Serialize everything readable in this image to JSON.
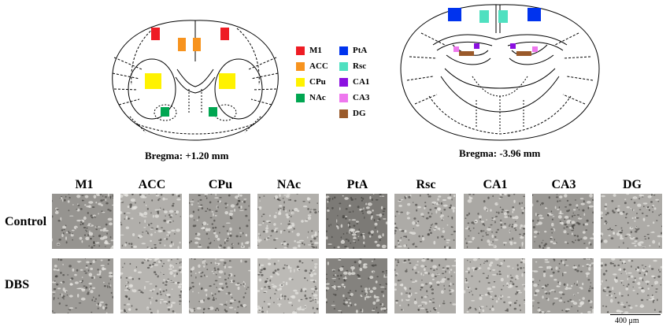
{
  "sections": {
    "left_caption": "Bregma: +1.20 mm",
    "right_caption": "Bregma: -3.96 mm"
  },
  "legend": [
    {
      "label": "M1",
      "color": "#ee1c24"
    },
    {
      "label": "ACC",
      "color": "#f7931e"
    },
    {
      "label": "CPu",
      "color": "#fff200"
    },
    {
      "label": "NAc",
      "color": "#00a651"
    },
    {
      "label": "PtA",
      "color": "#0033ee"
    },
    {
      "label": "Rsc",
      "color": "#4fe0c0"
    },
    {
      "label": "CA1",
      "color": "#8b10e0"
    },
    {
      "label": "CA3",
      "color": "#ee77ee"
    },
    {
      "label": "DG",
      "color": "#9a5a2a"
    }
  ],
  "regions": [
    "M1",
    "ACC",
    "CPu",
    "NAc",
    "PtA",
    "Rsc",
    "CA1",
    "CA3",
    "DG"
  ],
  "conditions": [
    "Control",
    "DBS"
  ],
  "scale_bar": "400 μm"
}
